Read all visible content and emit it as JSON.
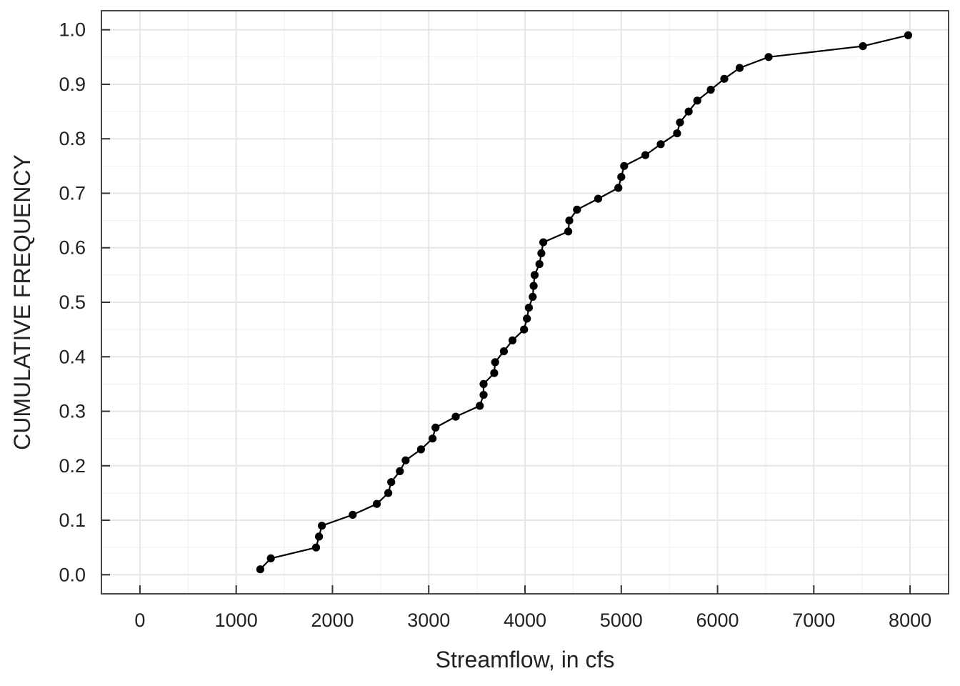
{
  "chart_data": {
    "type": "line",
    "title": "",
    "xlabel": "Streamflow, in cfs",
    "ylabel": "CUMULATIVE FREQUENCY",
    "xlim": [
      -400,
      8400
    ],
    "ylim": [
      -0.035,
      1.035
    ],
    "xticks": [
      0,
      1000,
      2000,
      3000,
      4000,
      5000,
      6000,
      7000,
      8000
    ],
    "xtick_labels": [
      "0",
      "1000",
      "2000",
      "3000",
      "4000",
      "5000",
      "6000",
      "7000",
      "8000"
    ],
    "yticks": [
      0.0,
      0.1,
      0.2,
      0.3,
      0.4,
      0.5,
      0.6,
      0.7,
      0.8,
      0.9,
      1.0
    ],
    "ytick_labels": [
      "0.0",
      "0.1",
      "0.2",
      "0.3",
      "0.4",
      "0.5",
      "0.6",
      "0.7",
      "0.8",
      "0.9",
      "1.0"
    ],
    "grid": true,
    "series": [
      {
        "points": [
          [
            1250,
            0.01
          ],
          [
            1360,
            0.03
          ],
          [
            1830,
            0.05
          ],
          [
            1860,
            0.07
          ],
          [
            1890,
            0.09
          ],
          [
            2210,
            0.11
          ],
          [
            2460,
            0.13
          ],
          [
            2580,
            0.15
          ],
          [
            2610,
            0.17
          ],
          [
            2700,
            0.19
          ],
          [
            2760,
            0.21
          ],
          [
            2920,
            0.23
          ],
          [
            3040,
            0.25
          ],
          [
            3070,
            0.27
          ],
          [
            3280,
            0.29
          ],
          [
            3530,
            0.31
          ],
          [
            3570,
            0.33
          ],
          [
            3570,
            0.35
          ],
          [
            3680,
            0.37
          ],
          [
            3690,
            0.39
          ],
          [
            3780,
            0.41
          ],
          [
            3870,
            0.43
          ],
          [
            3990,
            0.45
          ],
          [
            4020,
            0.47
          ],
          [
            4040,
            0.49
          ],
          [
            4080,
            0.51
          ],
          [
            4090,
            0.53
          ],
          [
            4100,
            0.55
          ],
          [
            4150,
            0.57
          ],
          [
            4170,
            0.59
          ],
          [
            4190,
            0.61
          ],
          [
            4450,
            0.63
          ],
          [
            4460,
            0.65
          ],
          [
            4540,
            0.67
          ],
          [
            4760,
            0.69
          ],
          [
            4970,
            0.71
          ],
          [
            5000,
            0.73
          ],
          [
            5030,
            0.75
          ],
          [
            5250,
            0.77
          ],
          [
            5410,
            0.79
          ],
          [
            5580,
            0.81
          ],
          [
            5610,
            0.83
          ],
          [
            5700,
            0.85
          ],
          [
            5790,
            0.87
          ],
          [
            5930,
            0.89
          ],
          [
            6070,
            0.91
          ],
          [
            6230,
            0.93
          ],
          [
            6530,
            0.95
          ],
          [
            7510,
            0.97
          ],
          [
            7980,
            0.99
          ]
        ]
      }
    ]
  }
}
